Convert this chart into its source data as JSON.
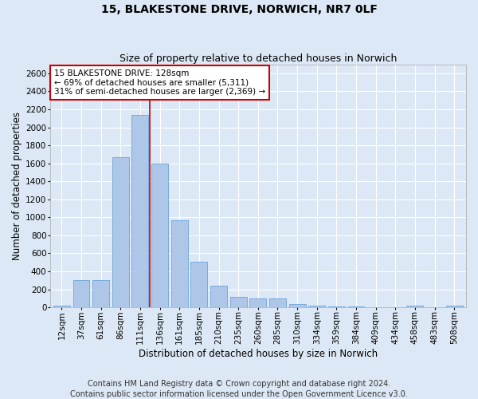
{
  "title": "15, BLAKESTONE DRIVE, NORWICH, NR7 0LF",
  "subtitle": "Size of property relative to detached houses in Norwich",
  "xlabel": "Distribution of detached houses by size in Norwich",
  "ylabel": "Number of detached properties",
  "categories": [
    "12sqm",
    "37sqm",
    "61sqm",
    "86sqm",
    "111sqm",
    "136sqm",
    "161sqm",
    "185sqm",
    "210sqm",
    "235sqm",
    "260sqm",
    "285sqm",
    "310sqm",
    "334sqm",
    "359sqm",
    "384sqm",
    "409sqm",
    "434sqm",
    "458sqm",
    "483sqm",
    "508sqm"
  ],
  "values": [
    20,
    300,
    300,
    1670,
    2140,
    1600,
    970,
    510,
    245,
    120,
    95,
    95,
    40,
    15,
    10,
    10,
    5,
    5,
    20,
    5,
    20
  ],
  "bar_color": "#aec6e8",
  "bar_edge_color": "#5b9bd5",
  "vline_x": 4.5,
  "vline_color": "#cc0000",
  "annotation_line1": "15 BLAKESTONE DRIVE: 128sqm",
  "annotation_line2": "← 69% of detached houses are smaller (5,311)",
  "annotation_line3": "31% of semi-detached houses are larger (2,369) →",
  "annotation_box_color": "#ffffff",
  "annotation_box_edge": "#cc0000",
  "ylim": [
    0,
    2700
  ],
  "yticks": [
    0,
    200,
    400,
    600,
    800,
    1000,
    1200,
    1400,
    1600,
    1800,
    2000,
    2200,
    2400,
    2600
  ],
  "footer1": "Contains HM Land Registry data © Crown copyright and database right 2024.",
  "footer2": "Contains public sector information licensed under the Open Government Licence v3.0.",
  "background_color": "#dce8f5",
  "plot_bg_color": "#dce8f5",
  "title_fontsize": 10,
  "subtitle_fontsize": 9,
  "axis_label_fontsize": 8.5,
  "tick_fontsize": 7.5,
  "annotation_fontsize": 7.5,
  "footer_fontsize": 7
}
